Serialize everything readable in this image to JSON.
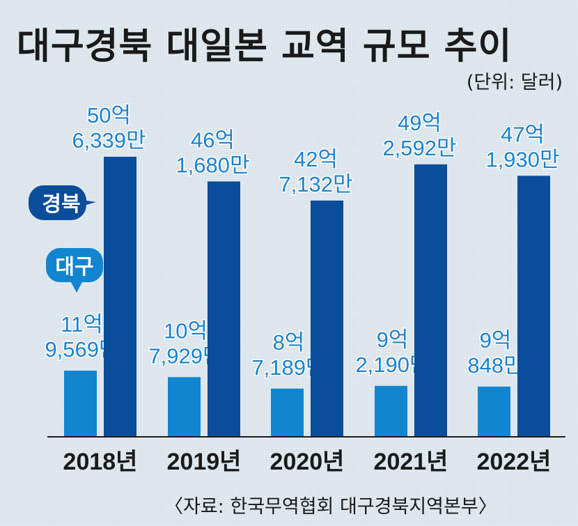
{
  "title": "대구경북 대일본 교역 규모 추이",
  "unit_note": "(단위: 달러)",
  "source": "〈자료: 한국무역협회 대구경북지역본부〉",
  "colors": {
    "daegu": "#1285d0",
    "gyeongbuk": "#0a4d9b",
    "label": "#1a82d0",
    "axis": "#1a1a1a"
  },
  "chart_data": {
    "type": "bar",
    "title": "대구경북 대일본 교역 규모 추이",
    "unit": "달러",
    "categories": [
      "2018년",
      "2019년",
      "2020년",
      "2021년",
      "2022년"
    ],
    "series": [
      {
        "name": "대구",
        "values": [
          1195690000,
          1079290000,
          871890000,
          921900000,
          908480000
        ],
        "labels": [
          [
            "11억",
            "9,569만"
          ],
          [
            "10억",
            "7,929만"
          ],
          [
            "8억",
            "7,189만"
          ],
          [
            "9억",
            "2,190만"
          ],
          [
            "9억",
            "848만"
          ]
        ]
      },
      {
        "name": "경북",
        "values": [
          5063390000,
          4616800000,
          4271320000,
          4925920000,
          4719300000
        ],
        "labels": [
          [
            "50억",
            "6,339만"
          ],
          [
            "46억",
            "1,680만"
          ],
          [
            "42억",
            "7,132만"
          ],
          [
            "49억",
            "2,592만"
          ],
          [
            "47억",
            "1,930만"
          ]
        ]
      }
    ],
    "legend": [
      "경북",
      "대구"
    ],
    "grid": false
  }
}
